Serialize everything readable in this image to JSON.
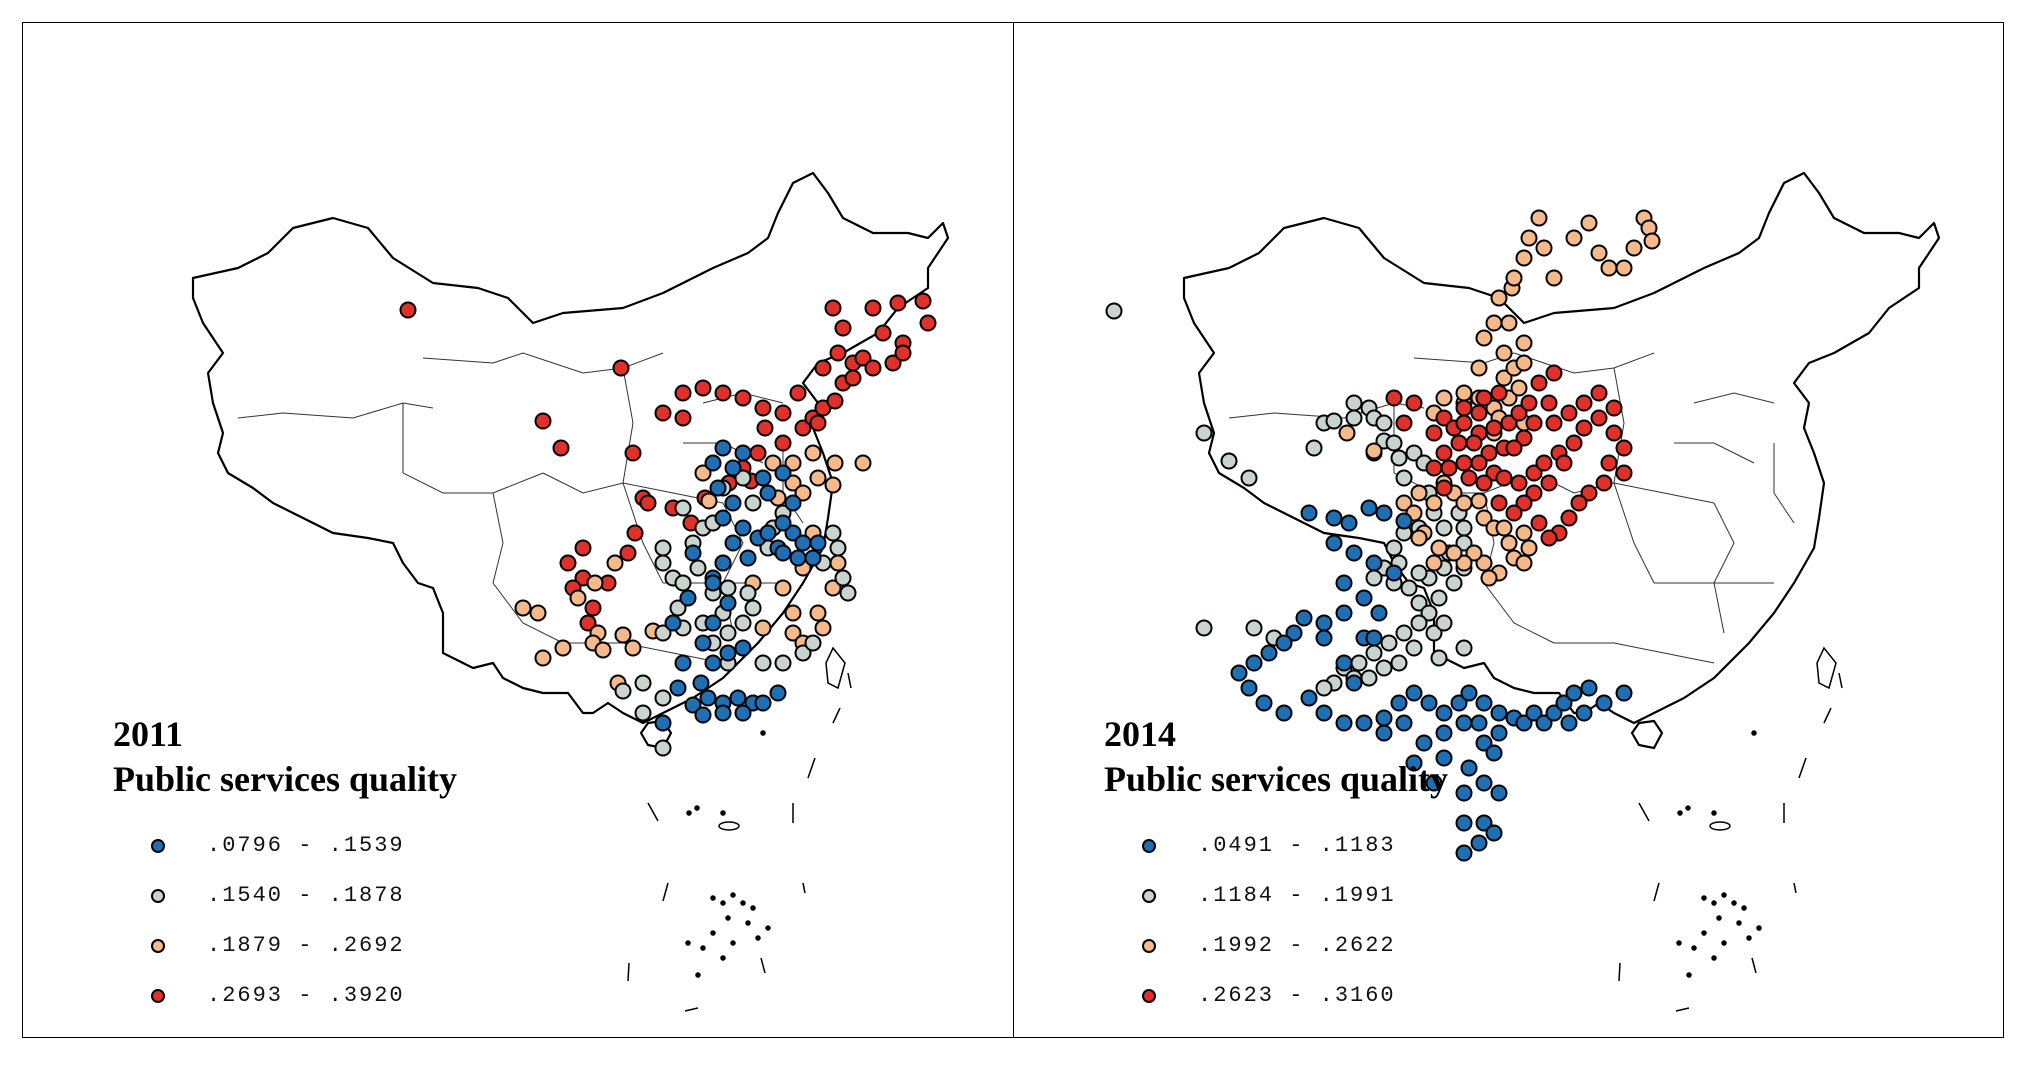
{
  "colors": {
    "blue": "#1f6fb4",
    "grey": "#c8d4cd",
    "orange": "#f5b98a",
    "red": "#e0302a",
    "outline": "#000000"
  },
  "panels": [
    {
      "year": "2011",
      "legend_title": "Public services quality",
      "legend": [
        {
          "label": ".0796 - .1539",
          "color": "#1f6fb4"
        },
        {
          "label": ".1540 - .1878",
          "color": "#c8d4cd"
        },
        {
          "label": ".1879 - .2692",
          "color": "#f5b98a"
        },
        {
          "label": ".2693 - .3920",
          "color": "#e0302a"
        }
      ]
    },
    {
      "year": "2014",
      "legend_title": "Public services quality",
      "legend": [
        {
          "label": ".0491 - .1183",
          "color": "#1f6fb4"
        },
        {
          "label": ".1184 - .1991",
          "color": "#c8d4cd"
        },
        {
          "label": ".1992 - .2622",
          "color": "#f5b98a"
        },
        {
          "label": ".2623 - .3160",
          "color": "#e0302a"
        }
      ]
    }
  ]
}
